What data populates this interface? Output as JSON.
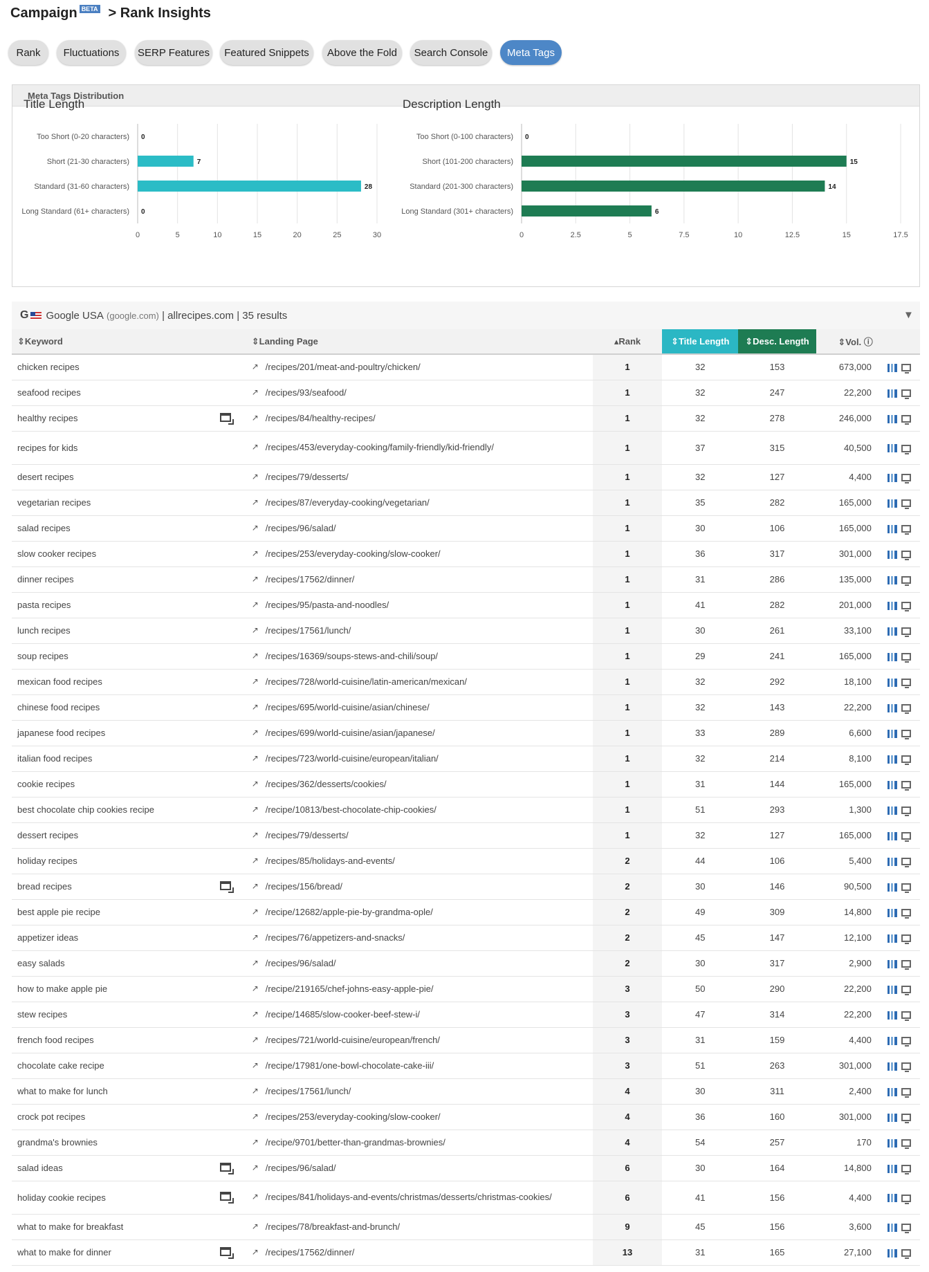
{
  "header": {
    "brand": "Campaign",
    "beta": "BETA",
    "crumb": "> Rank Insights"
  },
  "tabs": [
    {
      "label": "Rank"
    },
    {
      "label": "Fluctuations"
    },
    {
      "label": "SERP Features"
    },
    {
      "label": "Featured Snippets"
    },
    {
      "label": "Above the Fold"
    },
    {
      "label": "Search Console"
    },
    {
      "label": "Meta Tags",
      "active": true
    }
  ],
  "panel": {
    "title": "Meta Tags Distribution"
  },
  "chart_data": [
    {
      "type": "bar",
      "orientation": "horizontal",
      "title": "Title Length",
      "categories": [
        "Too Short (0-20 characters)",
        "Short (21-30 characters)",
        "Standard (31-60 characters)",
        "Long Standard (61+ characters)"
      ],
      "values": [
        0,
        7,
        28,
        0
      ],
      "xlim": [
        0,
        30
      ],
      "xticks": [
        0,
        5,
        10,
        15,
        20,
        25,
        30
      ],
      "color": "#2bbcc6",
      "grid": true
    },
    {
      "type": "bar",
      "orientation": "horizontal",
      "title": "Description Length",
      "categories": [
        "Too Short (0-100 characters)",
        "Short (101-200 characters)",
        "Standard (201-300 characters)",
        "Long Standard (301+ characters)"
      ],
      "values": [
        0,
        15,
        14,
        6
      ],
      "xlim": [
        0,
        17.5
      ],
      "xticks": [
        0,
        2.5,
        5,
        7.5,
        10,
        12.5,
        15,
        17.5
      ],
      "color": "#1e7c53",
      "grid": true
    }
  ],
  "info": {
    "engine": "Google USA",
    "domain_paren": "(google.com)",
    "site": "allrecipes.com",
    "results": "35 results",
    "sep": "|"
  },
  "columns": {
    "keyword": "Keyword",
    "landing": "Landing Page",
    "rank": "Rank",
    "title_len": "Title Length",
    "desc_len": "Desc. Length",
    "vol": "Vol."
  },
  "rows": [
    {
      "kw": "chicken recipes",
      "serp": false,
      "url": "/recipes/201/meat-and-poultry/chicken/",
      "rank": "1",
      "tl": "32",
      "dl": "153",
      "vol": "673,000"
    },
    {
      "kw": "seafood recipes",
      "serp": false,
      "url": "/recipes/93/seafood/",
      "rank": "1",
      "tl": "32",
      "dl": "247",
      "vol": "22,200"
    },
    {
      "kw": "healthy recipes",
      "serp": true,
      "url": "/recipes/84/healthy-recipes/",
      "rank": "1",
      "tl": "32",
      "dl": "278",
      "vol": "246,000"
    },
    {
      "kw": "recipes for kids",
      "serp": false,
      "url": "/recipes/453/everyday-cooking/family-friendly/kid-friendly/",
      "rank": "1",
      "tl": "37",
      "dl": "315",
      "vol": "40,500",
      "tall": true
    },
    {
      "kw": "desert recipes",
      "serp": false,
      "url": "/recipes/79/desserts/",
      "rank": "1",
      "tl": "32",
      "dl": "127",
      "vol": "4,400"
    },
    {
      "kw": "vegetarian recipes",
      "serp": false,
      "url": "/recipes/87/everyday-cooking/vegetarian/",
      "rank": "1",
      "tl": "35",
      "dl": "282",
      "vol": "165,000"
    },
    {
      "kw": "salad recipes",
      "serp": false,
      "url": "/recipes/96/salad/",
      "rank": "1",
      "tl": "30",
      "dl": "106",
      "vol": "165,000"
    },
    {
      "kw": "slow cooker recipes",
      "serp": false,
      "url": "/recipes/253/everyday-cooking/slow-cooker/",
      "rank": "1",
      "tl": "36",
      "dl": "317",
      "vol": "301,000"
    },
    {
      "kw": "dinner recipes",
      "serp": false,
      "url": "/recipes/17562/dinner/",
      "rank": "1",
      "tl": "31",
      "dl": "286",
      "vol": "135,000"
    },
    {
      "kw": "pasta recipes",
      "serp": false,
      "url": "/recipes/95/pasta-and-noodles/",
      "rank": "1",
      "tl": "41",
      "dl": "282",
      "vol": "201,000"
    },
    {
      "kw": "lunch recipes",
      "serp": false,
      "url": "/recipes/17561/lunch/",
      "rank": "1",
      "tl": "30",
      "dl": "261",
      "vol": "33,100"
    },
    {
      "kw": "soup recipes",
      "serp": false,
      "url": "/recipes/16369/soups-stews-and-chili/soup/",
      "rank": "1",
      "tl": "29",
      "dl": "241",
      "vol": "165,000"
    },
    {
      "kw": "mexican food recipes",
      "serp": false,
      "url": "/recipes/728/world-cuisine/latin-american/mexican/",
      "rank": "1",
      "tl": "32",
      "dl": "292",
      "vol": "18,100"
    },
    {
      "kw": "chinese food recipes",
      "serp": false,
      "url": "/recipes/695/world-cuisine/asian/chinese/",
      "rank": "1",
      "tl": "32",
      "dl": "143",
      "vol": "22,200"
    },
    {
      "kw": "japanese food recipes",
      "serp": false,
      "url": "/recipes/699/world-cuisine/asian/japanese/",
      "rank": "1",
      "tl": "33",
      "dl": "289",
      "vol": "6,600"
    },
    {
      "kw": "italian food recipes",
      "serp": false,
      "url": "/recipes/723/world-cuisine/european/italian/",
      "rank": "1",
      "tl": "32",
      "dl": "214",
      "vol": "8,100"
    },
    {
      "kw": "cookie recipes",
      "serp": false,
      "url": "/recipes/362/desserts/cookies/",
      "rank": "1",
      "tl": "31",
      "dl": "144",
      "vol": "165,000"
    },
    {
      "kw": "best chocolate chip cookies recipe",
      "serp": false,
      "url": "/recipe/10813/best-chocolate-chip-cookies/",
      "rank": "1",
      "tl": "51",
      "dl": "293",
      "vol": "1,300"
    },
    {
      "kw": "dessert recipes",
      "serp": false,
      "url": "/recipes/79/desserts/",
      "rank": "1",
      "tl": "32",
      "dl": "127",
      "vol": "165,000"
    },
    {
      "kw": "holiday recipes",
      "serp": false,
      "url": "/recipes/85/holidays-and-events/",
      "rank": "2",
      "tl": "44",
      "dl": "106",
      "vol": "5,400"
    },
    {
      "kw": "bread recipes",
      "serp": true,
      "url": "/recipes/156/bread/",
      "rank": "2",
      "tl": "30",
      "dl": "146",
      "vol": "90,500"
    },
    {
      "kw": "best apple pie recipe",
      "serp": false,
      "url": "/recipe/12682/apple-pie-by-grandma-ople/",
      "rank": "2",
      "tl": "49",
      "dl": "309",
      "vol": "14,800"
    },
    {
      "kw": "appetizer ideas",
      "serp": false,
      "url": "/recipes/76/appetizers-and-snacks/",
      "rank": "2",
      "tl": "45",
      "dl": "147",
      "vol": "12,100"
    },
    {
      "kw": "easy salads",
      "serp": false,
      "url": "/recipes/96/salad/",
      "rank": "2",
      "tl": "30",
      "dl": "317",
      "vol": "2,900"
    },
    {
      "kw": "how to make apple pie",
      "serp": false,
      "url": "/recipe/219165/chef-johns-easy-apple-pie/",
      "rank": "3",
      "tl": "50",
      "dl": "290",
      "vol": "22,200"
    },
    {
      "kw": "stew recipes",
      "serp": false,
      "url": "/recipe/14685/slow-cooker-beef-stew-i/",
      "rank": "3",
      "tl": "47",
      "dl": "314",
      "vol": "22,200"
    },
    {
      "kw": "french food recipes",
      "serp": false,
      "url": "/recipes/721/world-cuisine/european/french/",
      "rank": "3",
      "tl": "31",
      "dl": "159",
      "vol": "4,400"
    },
    {
      "kw": "chocolate cake recipe",
      "serp": false,
      "url": "/recipe/17981/one-bowl-chocolate-cake-iii/",
      "rank": "3",
      "tl": "51",
      "dl": "263",
      "vol": "301,000"
    },
    {
      "kw": "what to make for lunch",
      "serp": false,
      "url": "/recipes/17561/lunch/",
      "rank": "4",
      "tl": "30",
      "dl": "311",
      "vol": "2,400"
    },
    {
      "kw": "crock pot recipes",
      "serp": false,
      "url": "/recipes/253/everyday-cooking/slow-cooker/",
      "rank": "4",
      "tl": "36",
      "dl": "160",
      "vol": "301,000"
    },
    {
      "kw": "grandma's brownies",
      "serp": false,
      "url": "/recipe/9701/better-than-grandmas-brownies/",
      "rank": "4",
      "tl": "54",
      "dl": "257",
      "vol": "170"
    },
    {
      "kw": "salad ideas",
      "serp": true,
      "url": "/recipes/96/salad/",
      "rank": "6",
      "tl": "30",
      "dl": "164",
      "vol": "14,800"
    },
    {
      "kw": "holiday cookie recipes",
      "serp": true,
      "url": "/recipes/841/holidays-and-events/christmas/desserts/christmas-cookies/",
      "rank": "6",
      "tl": "41",
      "dl": "156",
      "vol": "4,400",
      "tall": true
    },
    {
      "kw": "what to make for breakfast",
      "serp": false,
      "url": "/recipes/78/breakfast-and-brunch/",
      "rank": "9",
      "tl": "45",
      "dl": "156",
      "vol": "3,600"
    },
    {
      "kw": "what to make for dinner",
      "serp": true,
      "url": "/recipes/17562/dinner/",
      "rank": "13",
      "tl": "31",
      "dl": "165",
      "vol": "27,100"
    }
  ]
}
